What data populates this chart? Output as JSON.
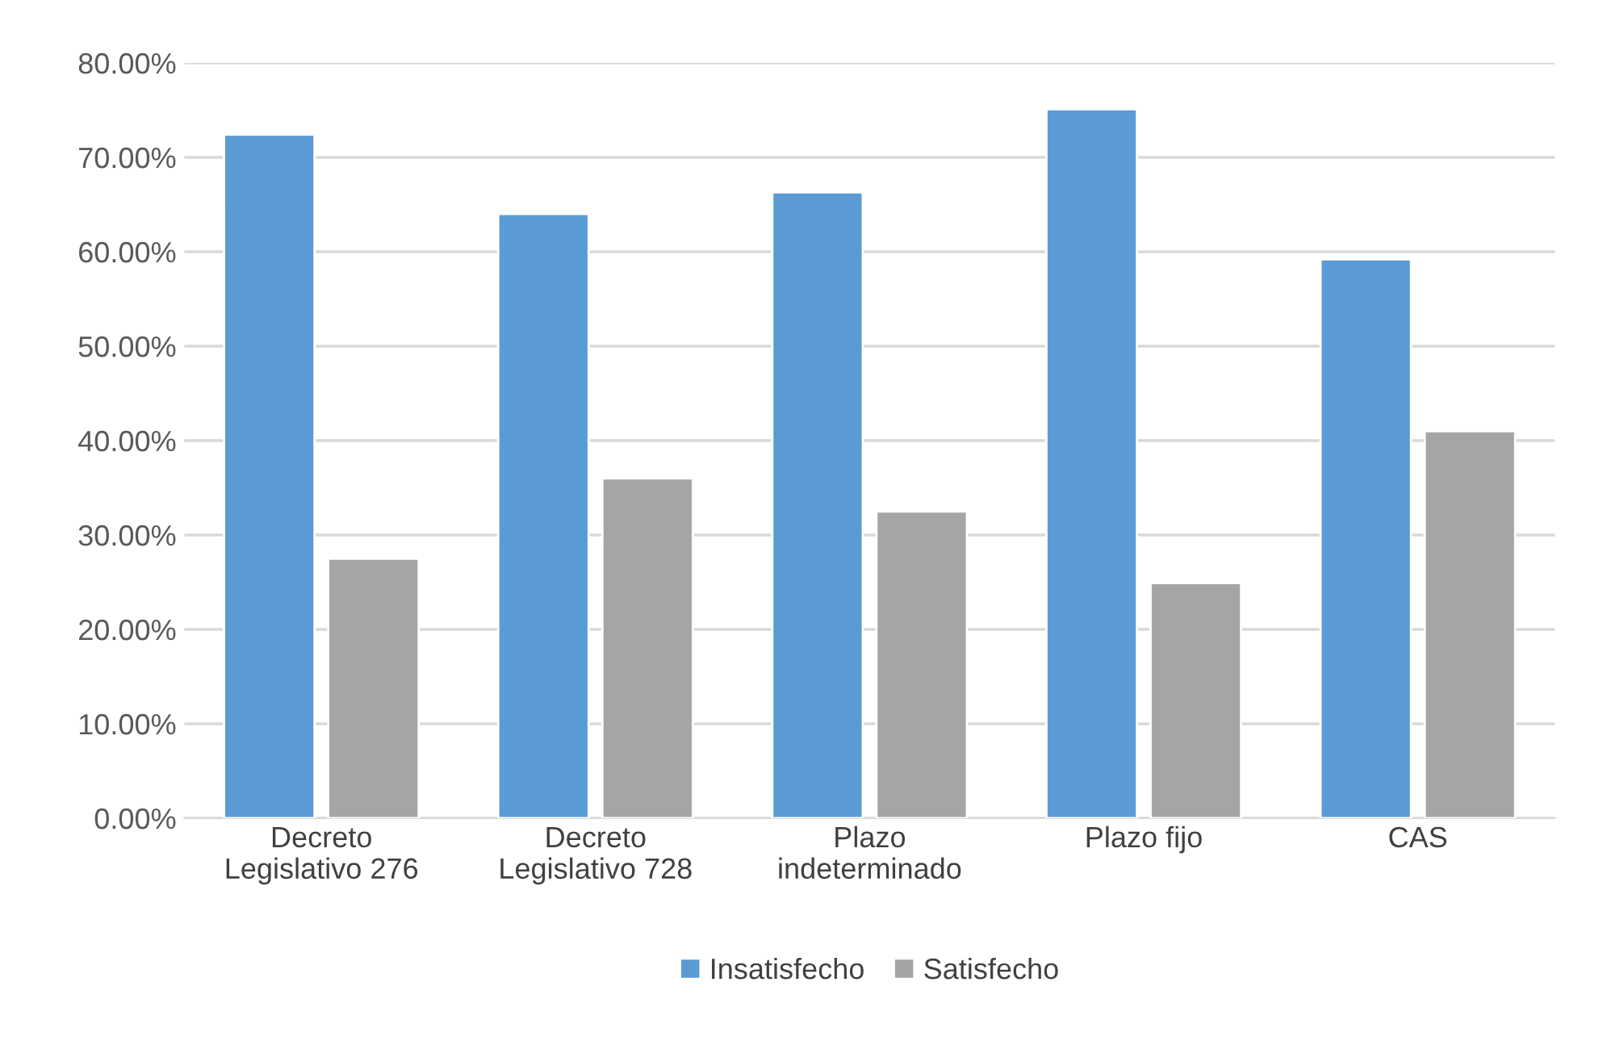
{
  "chart_data": {
    "type": "bar",
    "categories": [
      "Decreto\nLegislativo 276",
      "Decreto\nLegislativo 728",
      "Plazo\nindeterminado",
      "Plazo fijo",
      "CAS"
    ],
    "series": [
      {
        "name": "Insatisfecho",
        "color": "#5b9bd5",
        "values": [
          72.4,
          64.0,
          66.3,
          75.1,
          59.2
        ]
      },
      {
        "name": "Satisfecho",
        "color": "#a5a5a5",
        "values": [
          27.5,
          36.0,
          32.5,
          24.9,
          41.0
        ]
      }
    ],
    "ylim": [
      0,
      80
    ],
    "yticks": [
      {
        "value": 0,
        "label": "0.00%"
      },
      {
        "value": 10,
        "label": "10.00%"
      },
      {
        "value": 20,
        "label": "20.00%"
      },
      {
        "value": 30,
        "label": "30.00%"
      },
      {
        "value": 40,
        "label": "40.00%"
      },
      {
        "value": 50,
        "label": "50.00%"
      },
      {
        "value": 60,
        "label": "60.00%"
      },
      {
        "value": 70,
        "label": "70.00%"
      },
      {
        "value": 80,
        "label": "80.00%"
      }
    ],
    "grid": "y",
    "legend": "bottom"
  }
}
